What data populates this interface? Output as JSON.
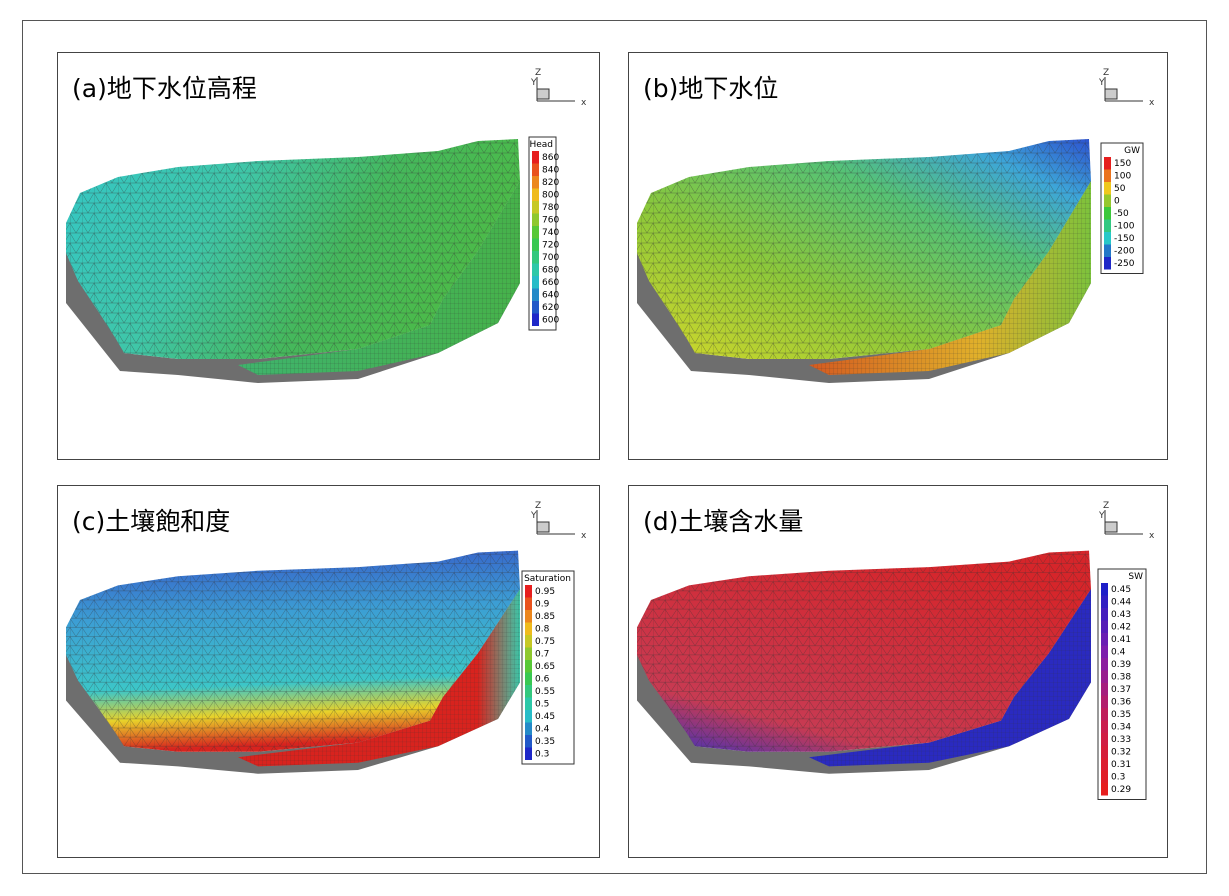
{
  "panels": [
    {
      "title": "(a)地下水位高程",
      "axes": [
        "Z",
        "Y",
        "x"
      ],
      "legend": {
        "title": "Head",
        "labels": [
          "860",
          "840",
          "820",
          "800",
          "780",
          "760",
          "740",
          "720",
          "700",
          "680",
          "660",
          "640",
          "620",
          "600"
        ]
      }
    },
    {
      "title": "(b)地下水位",
      "axes": [
        "Z",
        "Y",
        "x"
      ],
      "legend": {
        "title": "GW",
        "labels": [
          "150",
          "100",
          "50",
          "0",
          "-50",
          "-100",
          "-150",
          "-200",
          "-250"
        ]
      }
    },
    {
      "title": "(c)土壤飽和度",
      "axes": [
        "Z",
        "Y",
        "x"
      ],
      "legend": {
        "title": "Saturation",
        "labels": [
          "0.95",
          "0.9",
          "0.85",
          "0.8",
          "0.75",
          "0.7",
          "0.65",
          "0.6",
          "0.55",
          "0.5",
          "0.45",
          "0.4",
          "0.35",
          "0.3"
        ]
      }
    },
    {
      "title": "(d)土壤含水量",
      "axes": [
        "Z",
        "Y",
        "x"
      ],
      "legend": {
        "title": "SW",
        "labels": [
          "0.45",
          "0.44",
          "0.43",
          "0.42",
          "0.41",
          "0.4",
          "0.39",
          "0.38",
          "0.37",
          "0.36",
          "0.35",
          "0.34",
          "0.33",
          "0.32",
          "0.31",
          "0.3",
          "0.29"
        ]
      }
    }
  ]
}
